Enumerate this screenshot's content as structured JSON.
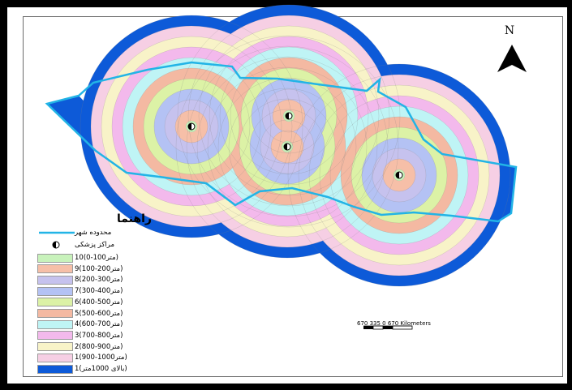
{
  "north_arrow": {
    "label": "N"
  },
  "legend": {
    "title": "راهنما",
    "boundary_label": "محدوده شهر",
    "center_label": "مراکز پزشکی",
    "items": [
      {
        "label": "10(0-100متر)",
        "color": "#c8f2bb"
      },
      {
        "label": "9(100-200متر)",
        "color": "#f6bfa8"
      },
      {
        "label": "8(200-300متر)",
        "color": "#c6c2ee"
      },
      {
        "label": "7(300-400متر)",
        "color": "#b4c2f4"
      },
      {
        "label": "6(400-500متر)",
        "color": "#dcf2a6"
      },
      {
        "label": "5(500-600متر)",
        "color": "#f4b9a2"
      },
      {
        "label": "4(600-700متر)",
        "color": "#bff4f5"
      },
      {
        "label": "3(700-800متر)",
        "color": "#f3b9ec"
      },
      {
        "label": "2(800-900متر)",
        "color": "#f8f3c8"
      },
      {
        "label": "1(900-1000متر)",
        "color": "#f6cfe4"
      },
      {
        "label": "1(بالای 1000متر)",
        "color": "#0d5ad8"
      }
    ]
  },
  "scale_bar": {
    "text": "670 335   0        670 Kilometers"
  },
  "colors": {
    "boundary": "#22b4e6",
    "outer_zone": "#0d5ad8",
    "ring_outline": "#7d7d7d"
  }
}
